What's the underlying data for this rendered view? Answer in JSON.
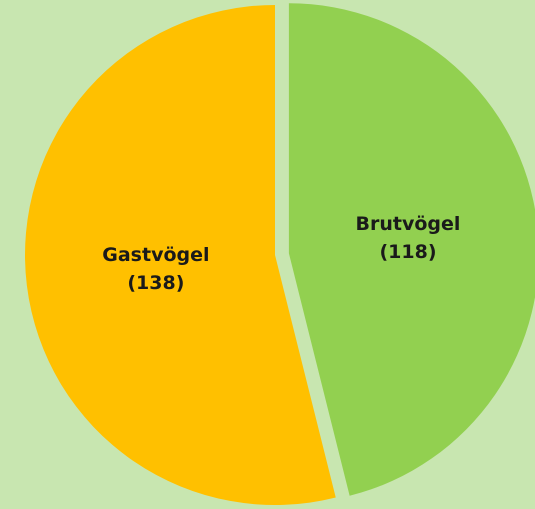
{
  "chart_data": {
    "type": "pie",
    "categories": [
      "Brutvögel",
      "Gastvögel"
    ],
    "values": [
      118,
      138
    ],
    "value_labels": [
      "(118)",
      "(138)"
    ],
    "colors": [
      "#92d050",
      "#ffc000"
    ],
    "background": "#c8e6b0"
  }
}
